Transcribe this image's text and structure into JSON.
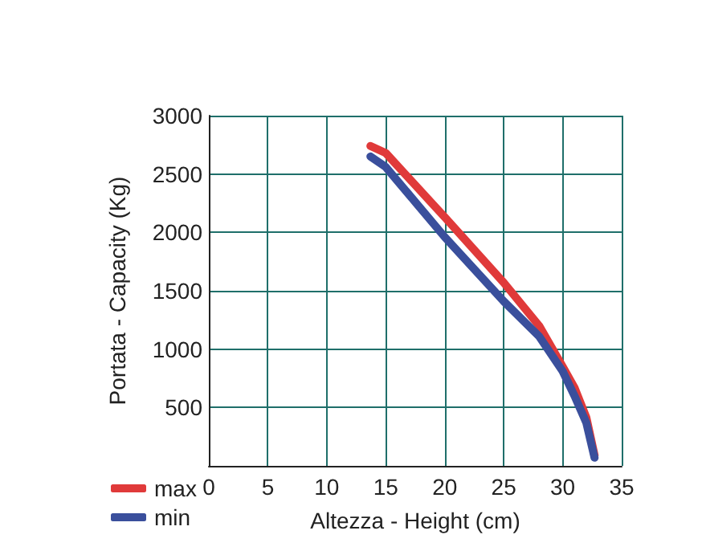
{
  "chart_data": {
    "type": "line",
    "xlabel": "Altezza - Height (cm)",
    "ylabel": "Portata - Capacity (Kg)",
    "xlim": [
      0,
      35
    ],
    "xticks": [
      0,
      5,
      10,
      15,
      20,
      25,
      30,
      35
    ],
    "ylim": [
      0,
      3000
    ],
    "yticks": [
      500,
      1000,
      1500,
      2000,
      2500,
      3000
    ],
    "grid": true,
    "legend": "bottom left",
    "marker": "none",
    "line_style": "solid",
    "series": [
      {
        "name": "max",
        "color": "#e03a3a",
        "x": [
          13.7,
          15,
          20,
          25,
          28,
          30,
          31,
          32,
          32.7
        ],
        "values": [
          2740,
          2680,
          2130,
          1570,
          1200,
          850,
          670,
          415,
          90
        ]
      },
      {
        "name": "min",
        "color": "#3a4f9c",
        "x": [
          13.7,
          15,
          20,
          25,
          28,
          30,
          31,
          32,
          32.7
        ],
        "values": [
          2650,
          2560,
          1960,
          1410,
          1110,
          810,
          600,
          370,
          70
        ]
      }
    ]
  }
}
